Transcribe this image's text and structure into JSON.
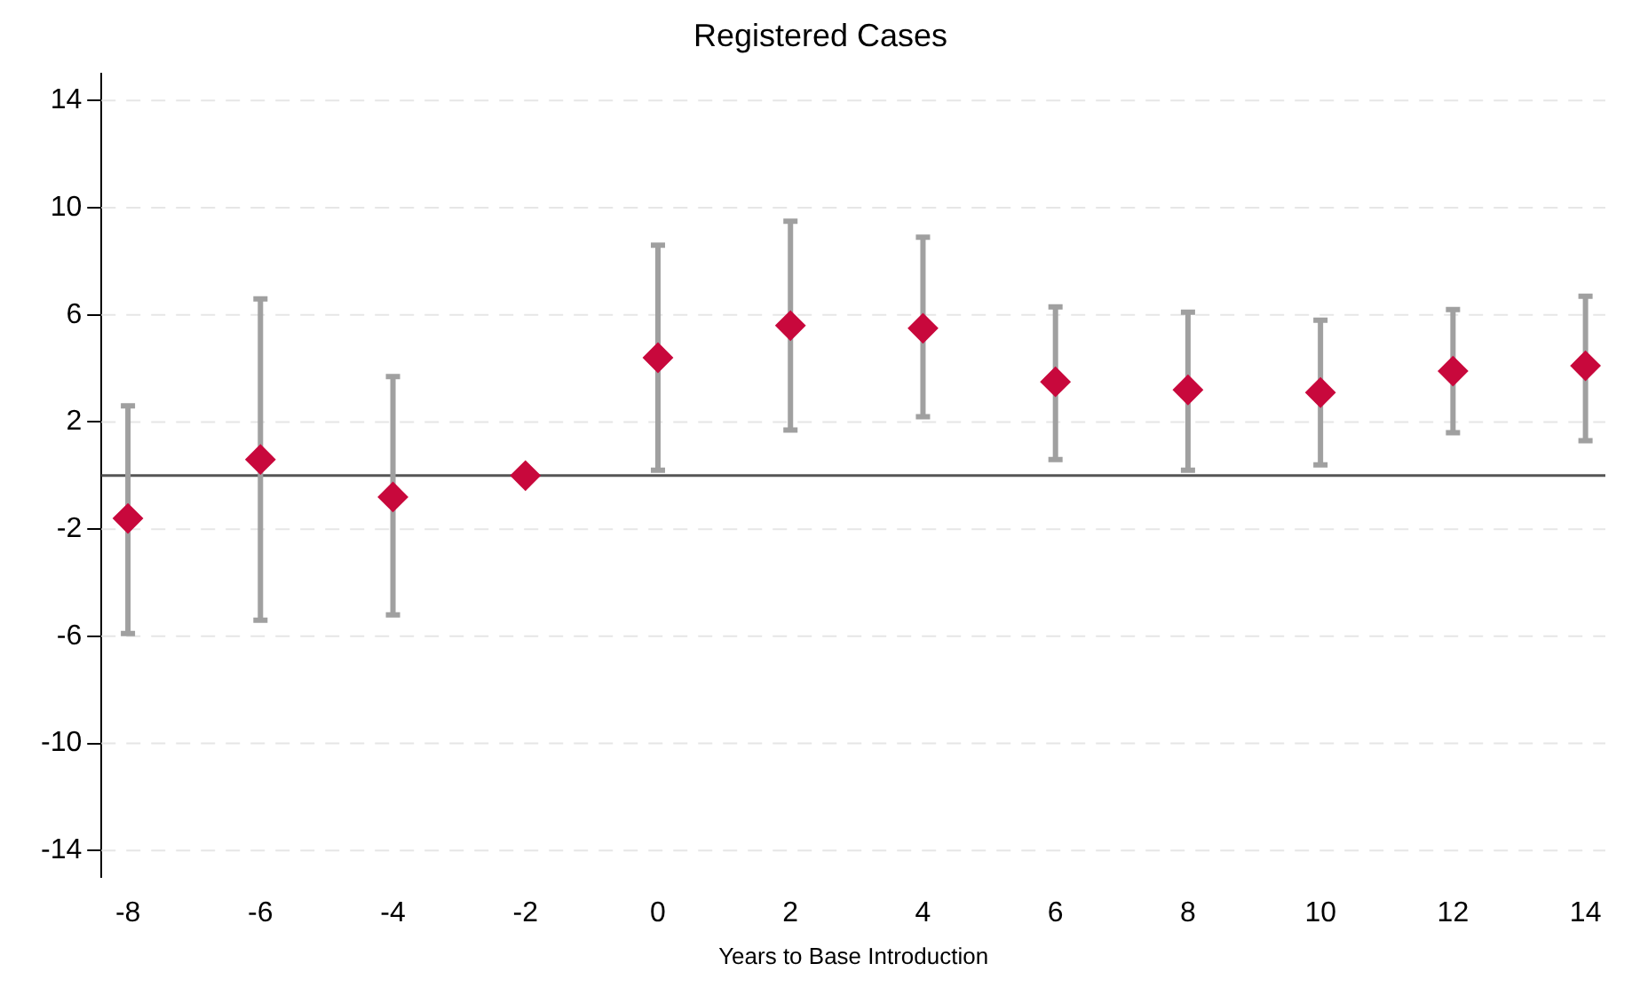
{
  "chart_data": {
    "type": "scatter",
    "title": "Registered Cases",
    "xlabel": "Years to Base Introduction",
    "x": [
      -8,
      -6,
      -4,
      -2,
      0,
      2,
      4,
      6,
      8,
      10,
      12,
      14
    ],
    "series": [
      {
        "color": "#c8083c",
        "values": [
          -1.6,
          0.6,
          -0.8,
          0,
          4.4,
          5.6,
          5.5,
          3.5,
          3.2,
          3.1,
          3.9,
          4.1
        ],
        "errors": [
          [
            -5.9,
            2.6
          ],
          [
            -5.4,
            6.6
          ],
          [
            -5.2,
            3.7
          ],
          null,
          [
            0.2,
            8.6
          ],
          [
            1.7,
            9.5
          ],
          [
            2.2,
            8.9
          ],
          [
            0.6,
            6.3
          ],
          [
            0.2,
            6.1
          ],
          [
            0.4,
            5.8
          ],
          [
            1.6,
            6.2
          ],
          [
            1.3,
            6.7
          ]
        ]
      }
    ],
    "xlim": [
      -8.4,
      14.3
    ],
    "xticks": [
      -8,
      -6,
      -4,
      -2,
      0,
      2,
      4,
      6,
      8,
      10,
      12,
      14
    ],
    "ylim": [
      -15,
      15
    ],
    "yticks": [
      -14,
      -10,
      -6,
      -2,
      2,
      6,
      10,
      14
    ],
    "ref_lines": [
      {
        "axis": "y",
        "value": 0,
        "color": "#555555"
      }
    ],
    "grid": "y",
    "marker": "diamond",
    "legend": false
  }
}
